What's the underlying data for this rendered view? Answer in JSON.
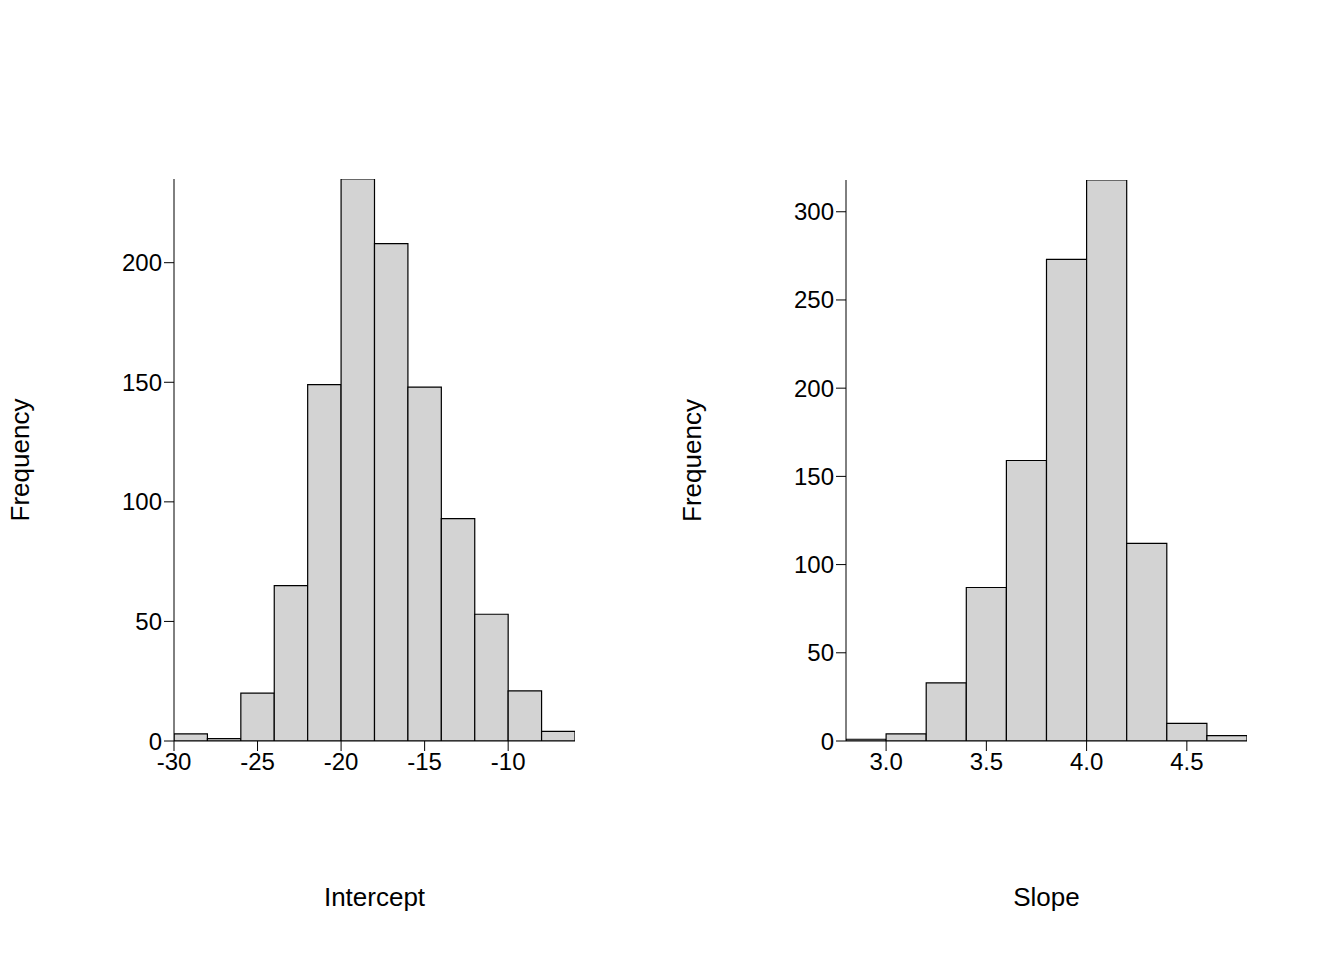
{
  "chart_data": [
    {
      "type": "histogram",
      "x_label": "Intercept",
      "y_label": "Frequency",
      "bins": [
        -30,
        -28,
        -26,
        -24,
        -22,
        -20,
        -18,
        -16,
        -14,
        -12,
        -10,
        -8,
        -6
      ],
      "counts": [
        3,
        1,
        20,
        65,
        149,
        235,
        208,
        148,
        93,
        53,
        21,
        4
      ],
      "color": "#d3d3d3",
      "xlim": [
        -30,
        -6
      ],
      "xticks": [
        -30,
        -25,
        -20,
        -15,
        -10
      ],
      "ylim": [
        0,
        235
      ],
      "yticks": [
        0,
        50,
        100,
        150,
        200
      ]
    },
    {
      "type": "histogram",
      "x_label": "Slope",
      "y_label": "Frequency",
      "bins": [
        2.8,
        3,
        3.2,
        3.4,
        3.6,
        3.8,
        4,
        4.2,
        4.4,
        4.6,
        4.8
      ],
      "counts": [
        1,
        4,
        33,
        87,
        159,
        273,
        318,
        112,
        10,
        3
      ],
      "color": "#d3d3d3",
      "xlim": [
        2.8,
        4.8
      ],
      "xticks": [
        {
          "value": 3,
          "label": "3.0"
        },
        3.5,
        {
          "value": 4,
          "label": "4.0"
        },
        4.5
      ],
      "ylim": [
        0,
        318
      ],
      "yticks": [
        0,
        50,
        100,
        150,
        200,
        250,
        300
      ]
    }
  ]
}
